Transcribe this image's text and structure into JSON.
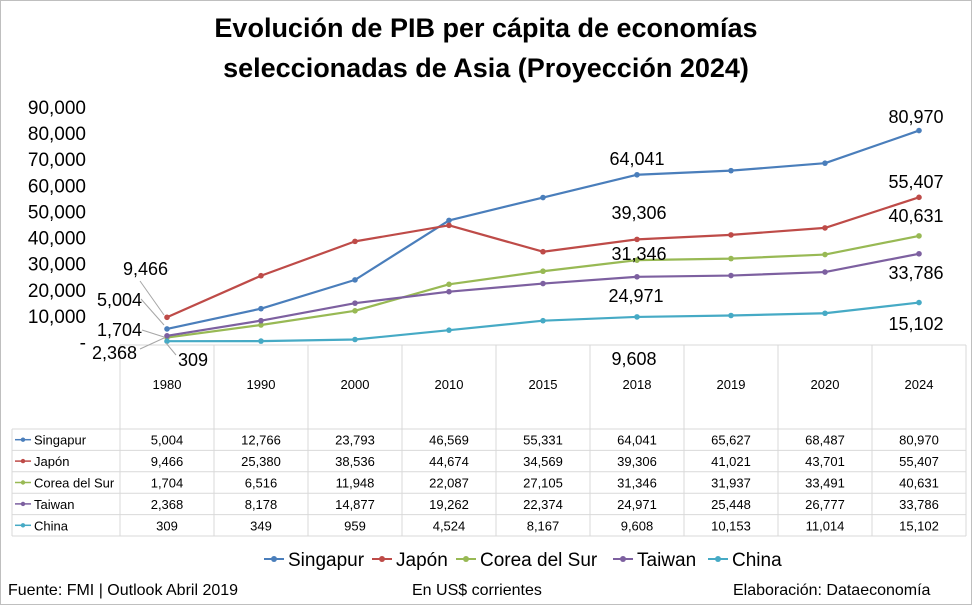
{
  "title_line1": "Evolución de PIB per cápita de economías",
  "title_line2": "seleccionadas de Asia (Proyección 2024)",
  "footer": {
    "source": "Fuente: FMI | Outlook Abril 2019",
    "units": "En US$ corrientes",
    "credit": "Elaboración: Dataeconomía"
  },
  "chart_data": {
    "type": "line",
    "categories": [
      "1980",
      "1990",
      "2000",
      "2010",
      "2015",
      "2018",
      "2019",
      "2020",
      "2024"
    ],
    "ylim": [
      0,
      90000
    ],
    "y_ticks": [
      "-",
      "10,000",
      "20,000",
      "30,000",
      "40,000",
      "50,000",
      "60,000",
      "70,000",
      "80,000",
      "90,000"
    ],
    "grid": false,
    "legend_position": "bottom",
    "series": [
      {
        "name": "Singapur",
        "color": "#4a7ebb",
        "values": [
          5004,
          12766,
          23793,
          46569,
          55331,
          64041,
          65627,
          68487,
          80970
        ],
        "labels": [
          "5,004",
          "12,766",
          "23,793",
          "46,569",
          "55,331",
          "64,041",
          "65,627",
          "68,487",
          "80,970"
        ]
      },
      {
        "name": "Japón",
        "color": "#be4b48",
        "values": [
          9466,
          25380,
          38536,
          44674,
          34569,
          39306,
          41021,
          43701,
          55407
        ],
        "labels": [
          "9,466",
          "25,380",
          "38,536",
          "44,674",
          "34,569",
          "39,306",
          "41,021",
          "43,701",
          "55,407"
        ]
      },
      {
        "name": "Corea del Sur",
        "color": "#98b954",
        "values": [
          1704,
          6516,
          11948,
          22087,
          27105,
          31346,
          31937,
          33491,
          40631
        ],
        "labels": [
          "1,704",
          "6,516",
          "11,948",
          "22,087",
          "27,105",
          "31,346",
          "31,937",
          "33,491",
          "40,631"
        ]
      },
      {
        "name": "Taiwan",
        "color": "#7d60a0",
        "values": [
          2368,
          8178,
          14877,
          19262,
          22374,
          24971,
          25448,
          26777,
          33786
        ],
        "labels": [
          "2,368",
          "8,178",
          "14,877",
          "19,262",
          "22,374",
          "24,971",
          "25,448",
          "26,777",
          "33,786"
        ]
      },
      {
        "name": "China",
        "color": "#46aac5",
        "values": [
          309,
          349,
          959,
          4524,
          8167,
          9608,
          10153,
          11014,
          15102
        ],
        "labels": [
          "309",
          "349",
          "959",
          "4,524",
          "8,167",
          "9,608",
          "10,153",
          "11,014",
          "15,102"
        ]
      }
    ],
    "annotations": [
      "80,970",
      "64,041",
      "55,407",
      "39,306",
      "40,631",
      "31,346",
      "33,786",
      "24,971",
      "15,102",
      "9,608",
      "9,466",
      "5,004",
      "1,704",
      "2,368",
      "309"
    ]
  }
}
